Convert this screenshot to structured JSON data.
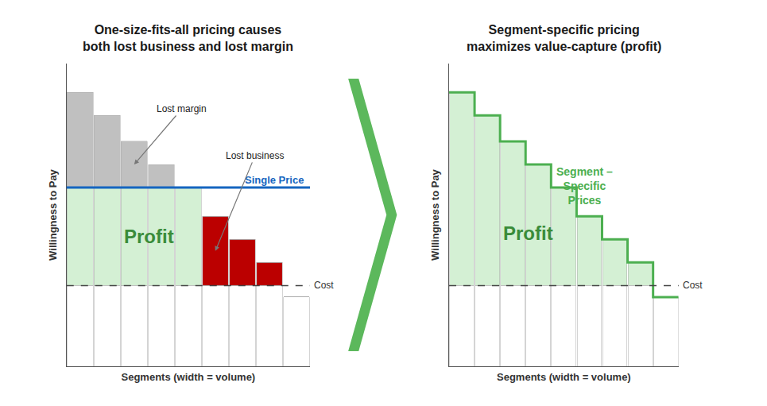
{
  "chart_data": [
    {
      "type": "bar",
      "stacked": true,
      "title": "One-size-fits-all pricing causes\nboth lost business and lost margin",
      "xlabel": "Segments (width = volume)",
      "ylabel": "Willingness to Pay",
      "categories": [
        null,
        null,
        null,
        null,
        null,
        null,
        null,
        null,
        null
      ],
      "series": [
        {
          "color": "#ffffff",
          "values": [
            0.28,
            0.28,
            0.28,
            0.28,
            0.28,
            0.28,
            0.28,
            0.28,
            0.24
          ]
        },
        {
          "color": "#d4f0d4",
          "values": [
            0.34,
            0.34,
            0.34,
            0.34,
            0.34,
            0,
            0,
            0,
            0
          ]
        },
        {
          "color": "#bb0000",
          "values": [
            0,
            0,
            0,
            0,
            0,
            0.24,
            0.16,
            0.08,
            0
          ]
        },
        {
          "color": "#c0c0c0",
          "values": [
            0.33,
            0.25,
            0.16,
            0.08,
            0,
            0,
            0,
            0,
            0
          ]
        }
      ],
      "lines": [
        {
          "label": "Single Price",
          "value": 0.62,
          "color": "#1565c0"
        },
        {
          "label": "Cost",
          "value": 0.28,
          "color": "#444444",
          "line_style": "dashed"
        }
      ],
      "annotations": [
        {
          "text": "Profit",
          "color": "#3a8c3a"
        },
        {
          "text": "Lost margin"
        },
        {
          "text": "Lost business"
        }
      ],
      "ylim": [
        0,
        1.05
      ],
      "tick_labels": false,
      "grid": false
    },
    {
      "type": "bar",
      "stacked": true,
      "title": "Segment-specific pricing\nmaximizes value-capture (profit)",
      "xlabel": "Segments (width = volume)",
      "ylabel": "Willingness to Pay",
      "categories": [
        null,
        null,
        null,
        null,
        null,
        null,
        null,
        null,
        null
      ],
      "series": [
        {
          "color": "#ffffff",
          "values": [
            0.28,
            0.28,
            0.28,
            0.28,
            0.28,
            0.28,
            0.28,
            0.28,
            0.24
          ]
        },
        {
          "color": "#d4f0d4",
          "values": [
            0.67,
            0.59,
            0.5,
            0.42,
            0.34,
            0.24,
            0.16,
            0.08,
            0
          ]
        },
        {
          "type": "line",
          "line_style": "step",
          "color": "#4CAF50",
          "values": [
            0.95,
            0.87,
            0.78,
            0.7,
            0.62,
            0.52,
            0.44,
            0.36,
            0.24
          ]
        }
      ],
      "lines": [
        {
          "label": "Cost",
          "value": 0.28,
          "color": "#444444",
          "line_style": "dashed"
        }
      ],
      "annotations": [
        {
          "text": "Profit",
          "color": "#3a8c3a"
        },
        {
          "text": "Segment –\nSpecific\nPrices",
          "color": "#4CAF50"
        }
      ],
      "ylim": [
        0,
        1.05
      ],
      "tick_labels": false,
      "grid": false
    }
  ]
}
